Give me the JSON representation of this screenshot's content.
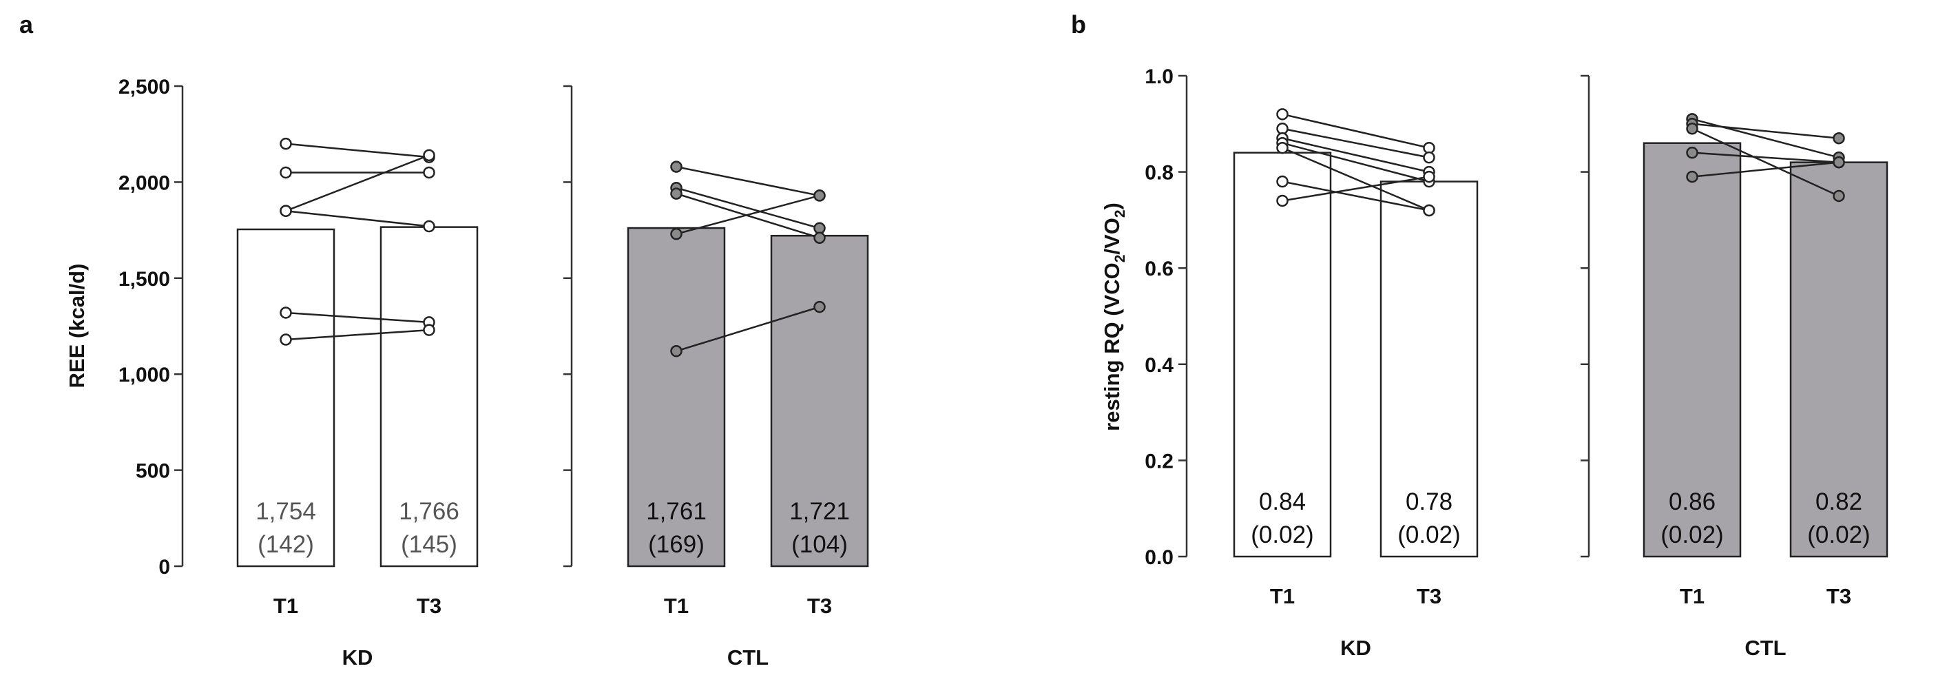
{
  "panels": [
    {
      "label": "a",
      "ylabel": "REE (kcal/d)",
      "ylim": [
        0,
        2500
      ],
      "yticks": [
        0,
        500,
        1000,
        1500,
        2000,
        2500
      ],
      "ytick_labels": [
        "0",
        "500",
        "1,000",
        "1,500",
        "2,000",
        "2,500"
      ],
      "groups": [
        {
          "name": "KD",
          "fill": "#ffffff",
          "label_color": "#555555",
          "bars": [
            {
              "cat": "T1",
              "value": 1754,
              "label1": "1,754",
              "label2": "(142)"
            },
            {
              "cat": "T3",
              "value": 1766,
              "label1": "1,766",
              "label2": "(145)"
            }
          ],
          "pairs": [
            [
              2200,
              2130
            ],
            [
              2050,
              2050
            ],
            [
              1850,
              2140
            ],
            [
              1850,
              1770
            ],
            [
              1320,
              1270
            ],
            [
              1180,
              1230
            ]
          ]
        },
        {
          "name": "CTL",
          "fill": "#a6a4a8",
          "label_color": "#111111",
          "bars": [
            {
              "cat": "T1",
              "value": 1761,
              "label1": "1,761",
              "label2": "(169)"
            },
            {
              "cat": "T3",
              "value": 1721,
              "label1": "1,721",
              "label2": "(104)"
            }
          ],
          "pairs": [
            [
              2080,
              1930
            ],
            [
              1970,
              1760
            ],
            [
              1940,
              1710
            ],
            [
              1730,
              1930
            ],
            [
              1120,
              1350
            ]
          ]
        }
      ]
    },
    {
      "label": "b",
      "ylabel_parts": [
        "resting RQ (VCO",
        "2",
        "/VO",
        "2",
        ")"
      ],
      "ylim": [
        0,
        1.0
      ],
      "yticks": [
        0,
        0.2,
        0.4,
        0.6,
        0.8,
        1.0
      ],
      "ytick_labels": [
        "0.0",
        "0.2",
        "0.4",
        "0.6",
        "0.8",
        "1.0"
      ],
      "groups": [
        {
          "name": "KD",
          "fill": "#ffffff",
          "label_color": "#111111",
          "bars": [
            {
              "cat": "T1",
              "value": 0.84,
              "label1": "0.84",
              "label2": "(0.02)"
            },
            {
              "cat": "T3",
              "value": 0.78,
              "label1": "0.78",
              "label2": "(0.02)"
            }
          ],
          "pairs": [
            [
              0.92,
              0.85
            ],
            [
              0.89,
              0.83
            ],
            [
              0.87,
              0.8
            ],
            [
              0.86,
              0.78
            ],
            [
              0.85,
              0.72
            ],
            [
              0.78,
              0.72
            ],
            [
              0.74,
              0.79
            ]
          ]
        },
        {
          "name": "CTL",
          "fill": "#a6a4a8",
          "label_color": "#111111",
          "bars": [
            {
              "cat": "T1",
              "value": 0.86,
              "label1": "0.86",
              "label2": "(0.02)"
            },
            {
              "cat": "T3",
              "value": 0.82,
              "label1": "0.82",
              "label2": "(0.02)"
            }
          ],
          "pairs": [
            [
              0.91,
              0.83
            ],
            [
              0.9,
              0.87
            ],
            [
              0.89,
              0.75
            ],
            [
              0.84,
              0.82
            ],
            [
              0.79,
              0.82
            ]
          ]
        }
      ]
    }
  ],
  "chart_data": [
    {
      "type": "bar",
      "title": "a",
      "xlabel": "",
      "ylabel": "REE (kcal/d)",
      "ylim": [
        0,
        2500
      ],
      "categories": [
        "KD T1",
        "KD T3",
        "CTL T1",
        "CTL T3"
      ],
      "values": [
        1754,
        1766,
        1761,
        1721
      ],
      "sd": [
        142,
        145,
        169,
        104
      ]
    },
    {
      "type": "bar",
      "title": "b",
      "xlabel": "",
      "ylabel": "resting RQ (VCO2/VO2)",
      "ylim": [
        0,
        1.0
      ],
      "categories": [
        "KD T1",
        "KD T3",
        "CTL T1",
        "CTL T3"
      ],
      "values": [
        0.84,
        0.78,
        0.86,
        0.82
      ],
      "sd": [
        0.02,
        0.02,
        0.02,
        0.02
      ]
    }
  ]
}
